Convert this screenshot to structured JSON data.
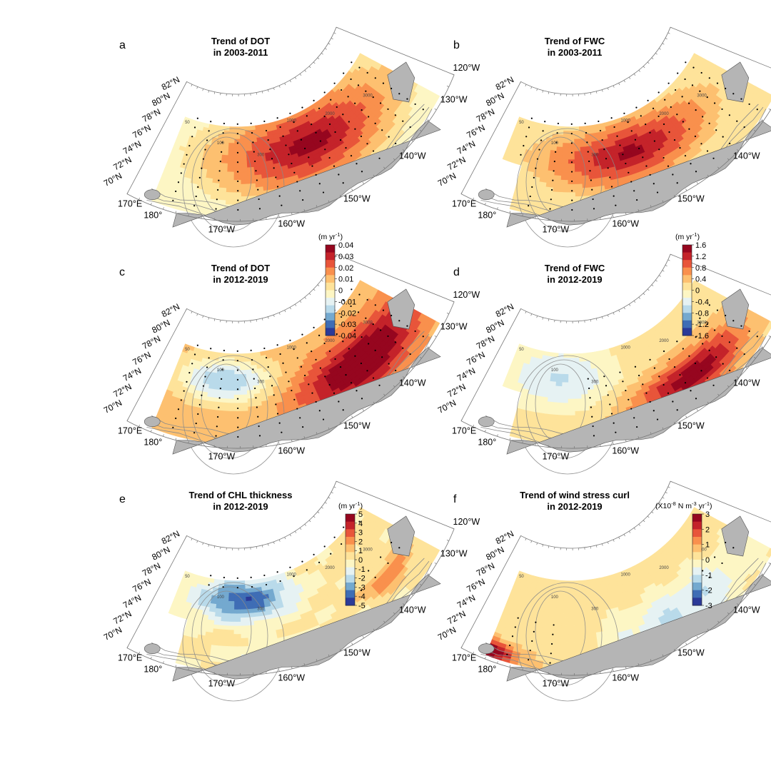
{
  "panels": [
    {
      "id": "a",
      "letter": "a",
      "title1": "Trend of DOT",
      "title2": "in 2003-2011",
      "field": "dot2003",
      "sig": "wide",
      "hasBar": false
    },
    {
      "id": "b",
      "letter": "b",
      "title1": "Trend of FWC",
      "title2": "in 2003-2011",
      "field": "fwc2003",
      "sig": "wide",
      "hasBar": false
    },
    {
      "id": "c",
      "letter": "c",
      "title1": "Trend of DOT",
      "title2": "in 2012-2019",
      "field": "dot2012",
      "sig": "wide",
      "hasBar": true
    },
    {
      "id": "d",
      "letter": "d",
      "title1": "Trend of FWC",
      "title2": "in 2012-2019",
      "field": "fwc2012",
      "sig": "south",
      "hasBar": true
    },
    {
      "id": "e",
      "letter": "e",
      "title1": "Trend of CHL thickness",
      "title2": "in 2012-2019",
      "field": "chl2012",
      "sig": "patchy",
      "hasBar": true
    },
    {
      "id": "f",
      "letter": "f",
      "title1": "Trend of wind stress curl",
      "title2": "in 2012-2019",
      "field": "wsc2012",
      "sig": "west",
      "hasBar": true
    }
  ],
  "latitude_labels": [
    "82°N",
    "80°N",
    "78°N",
    "76°N",
    "74°N",
    "72°N",
    "70°N"
  ],
  "longitude_labels": [
    "170°E",
    "180°",
    "170°W",
    "160°W",
    "150°W",
    "140°W",
    "130°W",
    "120°W"
  ],
  "contour_labels": [
    "50",
    "100",
    "300",
    "1000",
    "2000",
    "3000"
  ],
  "colorbars": {
    "c": {
      "unit_pre": "(m yr",
      "unit_exp": "-1",
      "unit_post": ")",
      "ticks": [
        "0.04",
        "0.03",
        "0.02",
        "0.01",
        "0",
        "-0.01",
        "-0.02",
        "-0.03",
        "-0.04"
      ],
      "range": [
        -0.04,
        0.04
      ]
    },
    "d": {
      "unit_pre": "(m yr",
      "unit_exp": "-1",
      "unit_post": ")",
      "ticks": [
        "1.6",
        "1.2",
        "0.8",
        "0.4",
        "0",
        "-0.4",
        "-0.8",
        "-1.2",
        "-1.6"
      ],
      "range": [
        -1.6,
        1.6
      ]
    },
    "e": {
      "unit_pre": "(m yr",
      "unit_exp": "-1",
      "unit_post": ")",
      "ticks": [
        "5",
        "4",
        "3",
        "2",
        "1",
        "0",
        "-1",
        "-2",
        "-3",
        "-4",
        "-5"
      ],
      "range": [
        -5,
        5
      ]
    },
    "f": {
      "unit_pre": "(X10",
      "unit_exp": "-8",
      "unit_mid": " N m",
      "unit_exp2": "-3",
      "unit_mid2": " yr",
      "unit_exp3": "-1",
      "unit_post": ")",
      "ticks": [
        "3",
        "2",
        "1",
        "0",
        "-1",
        "-2",
        "-3"
      ],
      "range": [
        -3,
        3
      ]
    }
  },
  "colors": {
    "diverging": [
      "#2b3a98",
      "#3f6db5",
      "#74a9cf",
      "#b9daea",
      "#e6f2f3",
      "#fdf6c4",
      "#fee39a",
      "#fdc070",
      "#f9904d",
      "#e8553a",
      "#c4232a",
      "#96061f"
    ],
    "land": "#b5b5b5",
    "bathymetry": "#8a8a8a"
  }
}
